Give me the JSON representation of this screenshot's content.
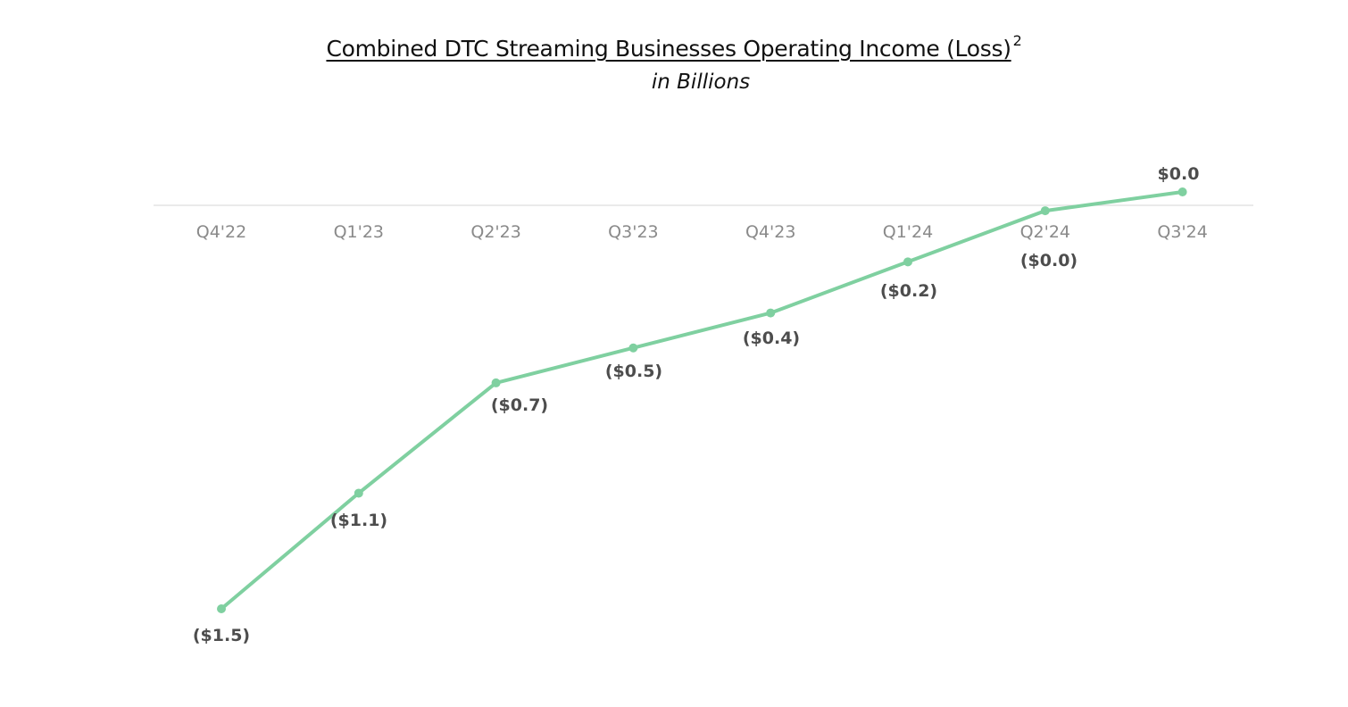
{
  "chart_data": {
    "type": "line",
    "title": "Combined DTC Streaming Businesses Operating Income (Loss)",
    "title_footnote": "2",
    "subtitle": "in Billions",
    "categories": [
      "Q4'22",
      "Q1'23",
      "Q2'23",
      "Q3'23",
      "Q4'23",
      "Q1'24",
      "Q2'24",
      "Q3'24"
    ],
    "series": [
      {
        "values": [
          -1.5,
          -1.1,
          -0.7,
          -0.5,
          -0.4,
          -0.2,
          -0.0,
          0.0
        ],
        "data_labels": [
          "($1.5)",
          "($1.1)",
          "($0.7)",
          "($0.5)",
          "($0.4)",
          "($0.2)",
          "($0.0)",
          "$0.0"
        ],
        "color": "#7fd0a0"
      }
    ],
    "plot_values": [
      -1.5,
      -1.07,
      -0.66,
      -0.53,
      -0.4,
      -0.21,
      -0.02,
      0.05
    ],
    "ylim": [
      -1.6,
      0.1
    ],
    "grid": false,
    "legend": "none",
    "axis_line_color": "#dddddd",
    "tick_label_color": "#8a8a8a",
    "data_label_color": "#4d4d4d"
  }
}
